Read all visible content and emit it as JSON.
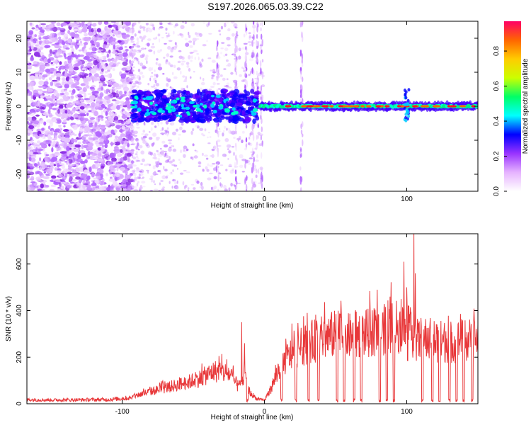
{
  "title": "S197.2026.065.03.39.C22",
  "chart_data": [
    {
      "type": "heatmap",
      "name": "spectrogram",
      "xlabel": "Height of straight line (km)",
      "ylabel": "Frequency (Hz)",
      "xlim": [
        -167,
        150
      ],
      "ylim": [
        -25,
        25
      ],
      "xticks": [
        -100,
        0,
        100
      ],
      "xtick_labels": [
        "-100",
        "0",
        "100"
      ],
      "yticks": [
        -20,
        -10,
        0,
        10,
        20
      ],
      "ytick_labels": [
        "-20",
        "-10",
        "0",
        "10",
        "20"
      ],
      "colorbar": {
        "label": "Normalized spectral amplitude",
        "range": [
          0,
          0.97
        ],
        "ticks": [
          0,
          0.2,
          0.4,
          0.6,
          0.8
        ],
        "tick_labels": [
          "0.0",
          "0.2",
          "0.4",
          "0.6",
          "0.8"
        ],
        "colormap": [
          "#ffffff",
          "#e6b3ff",
          "#9933ff",
          "#0000ff",
          "#00ffff",
          "#00ff66",
          "#ccff00",
          "#ffcc00",
          "#ff6600",
          "#ff0066"
        ]
      },
      "features": {
        "noise_region_x": [
          -167,
          -93
        ],
        "sparse_noise_region_x": [
          -93,
          0
        ],
        "signal_line_frequency_hz": 0,
        "signal_onset_x": -93
      }
    },
    {
      "type": "line",
      "name": "snr",
      "xlabel": "Height of straight line (km)",
      "ylabel": "SNR (10 * v/v)",
      "xlim": [
        -167,
        150
      ],
      "ylim": [
        0,
        730
      ],
      "xticks": [
        -100,
        0,
        100
      ],
      "xtick_labels": [
        "-100",
        "0",
        "100"
      ],
      "yticks": [
        0,
        200,
        400,
        600
      ],
      "ytick_labels": [
        "0",
        "200",
        "400",
        "600"
      ],
      "color": "#e8383a",
      "x": [
        -167,
        -150,
        -130,
        -110,
        -95,
        -85,
        -75,
        -65,
        -55,
        -45,
        -35,
        -25,
        -18,
        -14,
        -10,
        -5,
        0,
        5,
        10,
        15,
        20,
        25,
        30,
        35,
        40,
        50,
        60,
        70,
        80,
        90,
        95,
        98,
        100,
        103,
        105,
        107,
        110,
        120,
        130,
        140,
        150
      ],
      "values": [
        18,
        16,
        17,
        18,
        25,
        45,
        60,
        75,
        90,
        110,
        140,
        130,
        70,
        120,
        45,
        20,
        15,
        70,
        150,
        190,
        220,
        240,
        260,
        270,
        280,
        300,
        290,
        300,
        310,
        330,
        330,
        320,
        270,
        290,
        310,
        270,
        280,
        270,
        265,
        270,
        280
      ],
      "peaks": [
        {
          "x": -32,
          "y": 205
        },
        {
          "x": -16,
          "y": 350
        },
        {
          "x": -14,
          "y": 260
        },
        {
          "x": 76,
          "y": 340
        },
        {
          "x": 77,
          "y": 410
        },
        {
          "x": 96,
          "y": 450
        },
        {
          "x": 98,
          "y": 610
        },
        {
          "x": 100,
          "y": 500
        },
        {
          "x": 105,
          "y": 730
        },
        {
          "x": 106,
          "y": 560
        }
      ],
      "dropouts": [
        -12,
        12,
        22,
        31,
        38,
        51,
        56,
        63,
        68,
        81,
        86,
        91,
        111,
        118,
        123,
        130,
        135,
        140,
        146
      ]
    }
  ]
}
